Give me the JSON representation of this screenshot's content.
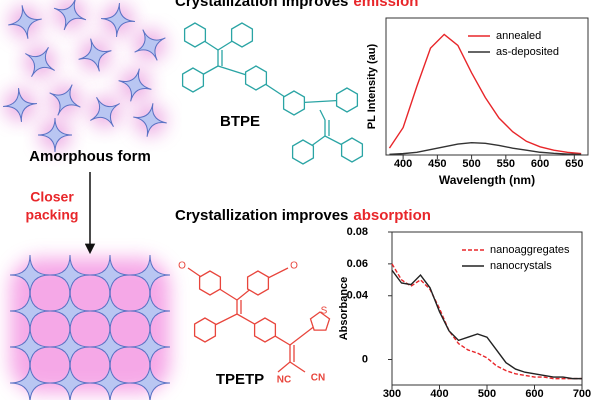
{
  "headings": [
    {
      "text": "Crystallization improves",
      "highlight": "emission"
    },
    {
      "text": "Crystallization improves",
      "highlight": "absorption"
    }
  ],
  "left": {
    "amorphous_label": "Amorphous form",
    "arrow_label": [
      "Closer",
      "packing"
    ]
  },
  "molecules": {
    "btpe": {
      "label": "BTPE"
    },
    "tpetp": {
      "label": "TPETP",
      "atoms": [
        "O",
        "O",
        "S",
        "NC",
        "CN"
      ]
    }
  },
  "chart_data": [
    {
      "type": "line",
      "xlabel": "Wavelength (nm)",
      "ylabel": "PL Intensity (au)",
      "x": [
        380,
        400,
        420,
        440,
        460,
        480,
        500,
        520,
        540,
        560,
        580,
        600,
        620,
        640,
        660
      ],
      "series": [
        {
          "name": "annealed",
          "color": "#e8262a",
          "values": [
            0.05,
            0.2,
            0.5,
            0.78,
            0.88,
            0.8,
            0.6,
            0.42,
            0.27,
            0.17,
            0.1,
            0.06,
            0.035,
            0.02,
            0.01
          ]
        },
        {
          "name": "as-deposited",
          "color": "#333333",
          "values": [
            0.005,
            0.01,
            0.02,
            0.04,
            0.06,
            0.08,
            0.09,
            0.085,
            0.07,
            0.05,
            0.035,
            0.02,
            0.012,
            0.007,
            0.004
          ]
        }
      ],
      "xlim": [
        375,
        670
      ],
      "ylim": [
        0,
        1
      ],
      "xticks": [
        400,
        450,
        500,
        550,
        600,
        650
      ],
      "legend": "upper right"
    },
    {
      "type": "line",
      "ylabel": "Absorbance",
      "x": [
        300,
        320,
        340,
        360,
        380,
        400,
        420,
        440,
        460,
        480,
        500,
        520,
        540,
        560,
        580,
        600,
        620,
        640,
        660,
        680,
        700
      ],
      "series": [
        {
          "name": "nanoaggregates",
          "color": "#e8262a",
          "linestyle": "dashed",
          "values": [
            0.06,
            0.05,
            0.046,
            0.05,
            0.044,
            0.032,
            0.018,
            0.01,
            0.006,
            0.004,
            0.001,
            -0.004,
            -0.007,
            -0.009,
            -0.01,
            -0.011,
            -0.011,
            -0.012,
            -0.012,
            -0.012,
            -0.012
          ]
        },
        {
          "name": "nanocrystals",
          "color": "#222222",
          "values": [
            0.056,
            0.048,
            0.047,
            0.053,
            0.045,
            0.03,
            0.018,
            0.012,
            0.014,
            0.016,
            0.014,
            0.006,
            -0.002,
            -0.006,
            -0.008,
            -0.009,
            -0.01,
            -0.011,
            -0.011,
            -0.012,
            -0.012
          ]
        }
      ],
      "xlim": [
        300,
        700
      ],
      "ylim": [
        -0.016,
        0.08
      ],
      "xticks": [
        300,
        400,
        500,
        600,
        700
      ],
      "yticks": [
        0,
        0.04,
        0.06,
        0.08
      ],
      "legend": "upper right"
    }
  ]
}
